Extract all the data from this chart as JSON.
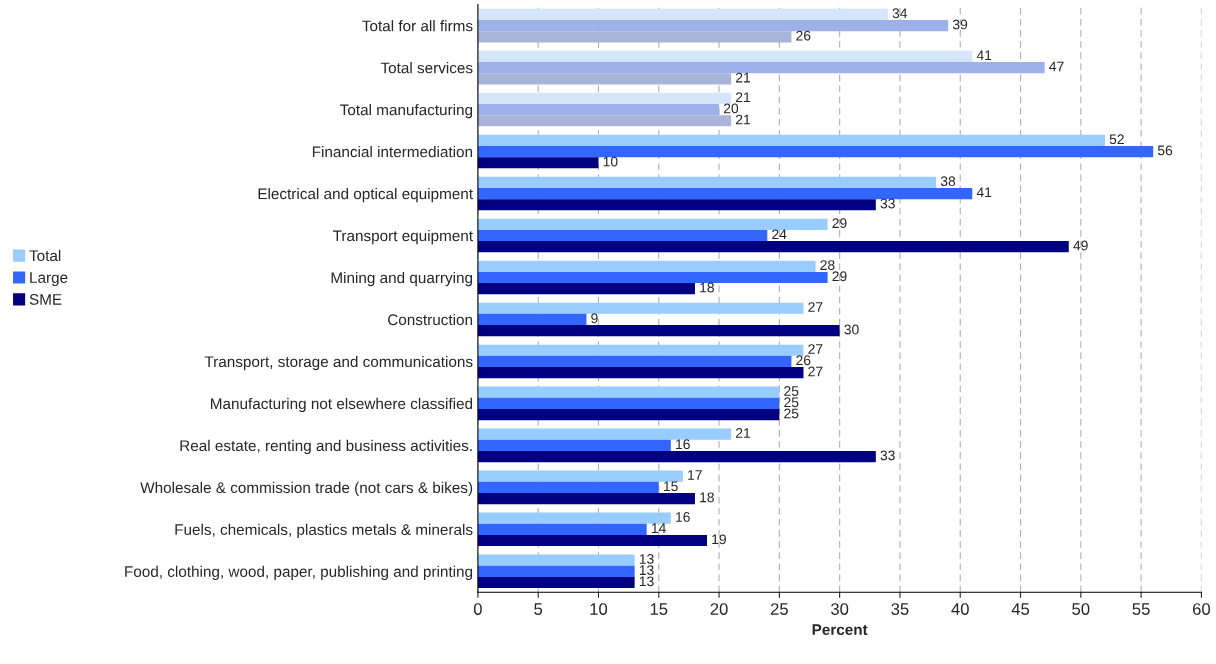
{
  "chart_data": {
    "type": "bar",
    "orientation": "horizontal",
    "xlabel": "Percent",
    "categories": [
      "Total for all firms",
      "Total services",
      "Total manufacturing",
      "Financial intermediation",
      "Electrical and optical equipment",
      "Transport equipment",
      "Mining and quarrying",
      "Construction",
      "Transport, storage and communications",
      "Manufacturing not elsewhere classified",
      "Real estate, renting and business activities.",
      "Wholesale & commission trade (not cars & bikes)",
      "Fuels, chemicals, plastics metals & minerals",
      "Food, clothing, wood, paper, publishing and printing"
    ],
    "series": [
      {
        "name": "Total",
        "color": "#99ccff",
        "colors": [
          "#d6e6fa",
          "#d6e6fa",
          "#d6e6fa",
          "#99ccff",
          "#99ccff",
          "#99ccff",
          "#99ccff",
          "#99ccff",
          "#99ccff",
          "#99ccff",
          "#99ccff",
          "#99ccff",
          "#99ccff",
          "#99ccff"
        ],
        "values": [
          34,
          41,
          21,
          52,
          38,
          29,
          28,
          27,
          27,
          25,
          21,
          17,
          16,
          13
        ]
      },
      {
        "name": "Large",
        "color": "#3366ff",
        "colors": [
          "#9db0e8",
          "#9db0e8",
          "#9db0e8",
          "#3366ff",
          "#3366ff",
          "#3366ff",
          "#3366ff",
          "#3366ff",
          "#3366ff",
          "#3366ff",
          "#3366ff",
          "#3366ff",
          "#3366ff",
          "#3366ff"
        ],
        "values": [
          39,
          47,
          20,
          56,
          41,
          24,
          29,
          9,
          26,
          25,
          16,
          15,
          14,
          13
        ]
      },
      {
        "name": "SME",
        "color": "#000080",
        "colors": [
          "#aab4d8",
          "#aab4d8",
          "#aab4d8",
          "#000080",
          "#000080",
          "#000080",
          "#000080",
          "#000080",
          "#000080",
          "#000080",
          "#000080",
          "#000080",
          "#000080",
          "#000080"
        ],
        "values": [
          26,
          21,
          21,
          10,
          33,
          49,
          18,
          30,
          27,
          25,
          33,
          18,
          19,
          13
        ]
      }
    ],
    "xlim": [
      0,
      60
    ],
    "xticks": [
      0,
      5,
      10,
      15,
      20,
      25,
      30,
      35,
      40,
      45,
      50,
      55,
      60
    ],
    "grid": "x",
    "legend": "left",
    "data_labels": true
  }
}
